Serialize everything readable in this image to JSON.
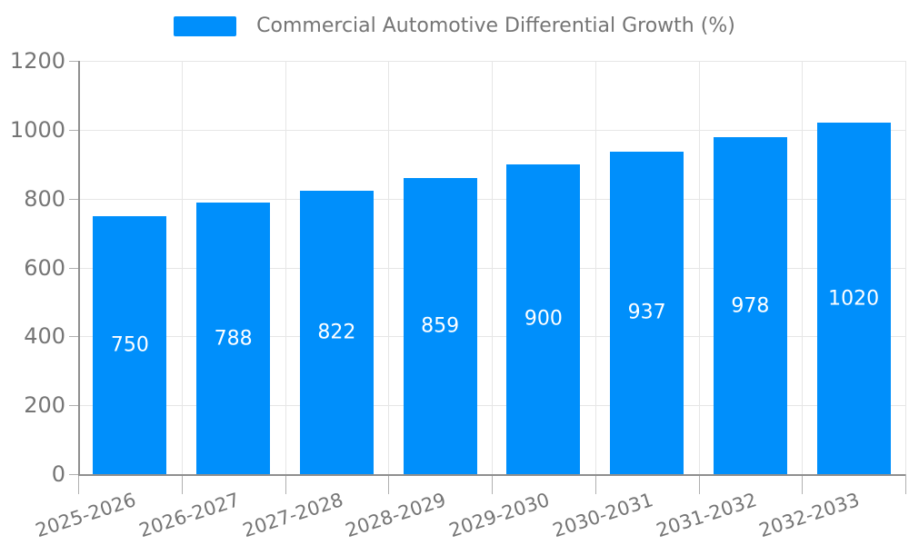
{
  "legend": {
    "label": "Commercial Automotive Differential Growth (%)",
    "marker_color": "#008FFB"
  },
  "chart_data": {
    "type": "bar",
    "title": "Commercial Automotive Differential Growth (%)",
    "categories": [
      "2025-2026",
      "2026-2027",
      "2027-2028",
      "2028-2029",
      "2029-2030",
      "2030-2031",
      "2031-2032",
      "2032-2033"
    ],
    "values": [
      750,
      788,
      822,
      859,
      900,
      937,
      978,
      1020
    ],
    "bar_labels": [
      "750",
      "788",
      "822",
      "859",
      "900",
      "937",
      "978",
      "1020"
    ],
    "xlabel": "",
    "ylabel": "",
    "ylim": [
      0,
      1200
    ],
    "yticks": [
      0,
      200,
      400,
      600,
      800,
      1000,
      1200
    ],
    "grid": "horizontal-and-vertical",
    "legend_position": "top-center",
    "colors": {
      "bar": "#008FFB",
      "grid": "#e6e6e6",
      "axis_line": "#8f8f8f",
      "tick": "#b0b0b0",
      "axis_text": "#757575",
      "bar_value_text": "#ffffff",
      "background": "#ffffff"
    }
  }
}
